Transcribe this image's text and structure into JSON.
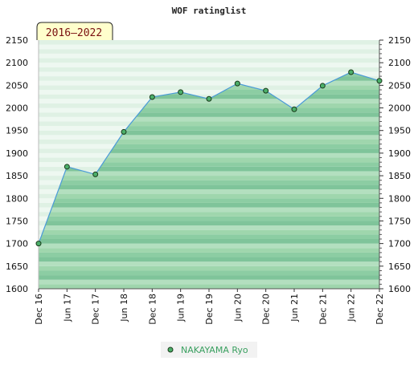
{
  "chart_data": {
    "type": "area",
    "title": "WOF ratinglist",
    "period_badge": "2016–2022",
    "x_labels": [
      "Dec 16",
      "Jun 17",
      "Dec 17",
      "Jun 18",
      "Dec 18",
      "Jun 19",
      "Dec 19",
      "Jun 20",
      "Dec 20",
      "Jun 21",
      "Dec 21",
      "Jun 22",
      "Dec 22"
    ],
    "y_ticks": [
      1600,
      1650,
      1700,
      1750,
      1800,
      1850,
      1900,
      1950,
      2000,
      2050,
      2100,
      2150
    ],
    "y_tick_labels": [
      "1600",
      "1650",
      "1700",
      "1750",
      "1800",
      "1850",
      "1900",
      "1950",
      "2000",
      "2050",
      "2100",
      "2150"
    ],
    "ylim": [
      1600,
      2150
    ],
    "series": [
      {
        "name": "NAKAYAMA Ryo",
        "values": [
          1700,
          1870,
          1853,
          1947,
          2024,
          2035,
          2020,
          2054,
          2038,
          1997,
          2049,
          2079,
          2060
        ]
      }
    ],
    "grid": true,
    "legend": "bottom-center",
    "colors": {
      "area": "#8fcfa4",
      "line": "#4a9ad8",
      "marker": "#4caf6a",
      "marker_edge": "#1a3a1a",
      "badge_bg": "#ffffcc",
      "legend_text": "#3aa060"
    }
  }
}
